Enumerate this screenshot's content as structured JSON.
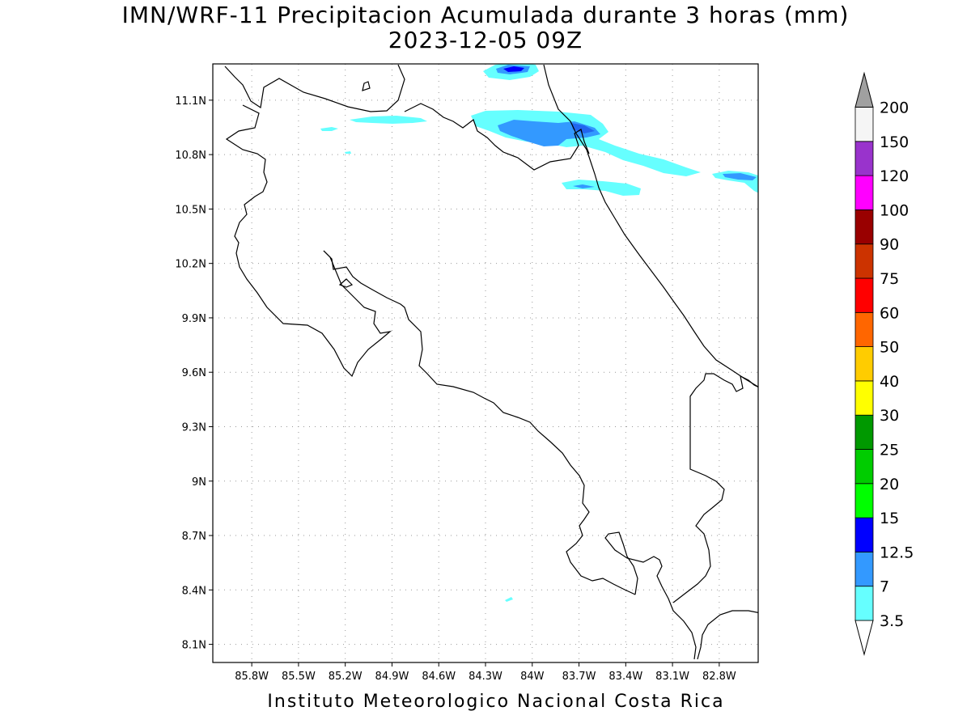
{
  "title": {
    "line1": "IMN/WRF-11 Precipitacion Acumulada durante 3 horas (mm)",
    "line2": "2023-12-05 09Z"
  },
  "footer": "Instituto Meteorologico Nacional Costa Rica",
  "map": {
    "lon_range": [
      -86.05,
      -82.55
    ],
    "lat_range": [
      8.0,
      11.3
    ],
    "lon_ticks": [
      {
        "value": -85.8,
        "label": "85.8W"
      },
      {
        "value": -85.5,
        "label": "85.5W"
      },
      {
        "value": -85.2,
        "label": "85.2W"
      },
      {
        "value": -84.9,
        "label": "84.9W"
      },
      {
        "value": -84.6,
        "label": "84.6W"
      },
      {
        "value": -84.3,
        "label": "84.3W"
      },
      {
        "value": -84.0,
        "label": "84W"
      },
      {
        "value": -83.7,
        "label": "83.7W"
      },
      {
        "value": -83.4,
        "label": "83.4W"
      },
      {
        "value": -83.1,
        "label": "83.1W"
      },
      {
        "value": -82.8,
        "label": "82.8W"
      }
    ],
    "lat_ticks": [
      {
        "value": 11.1,
        "label": "11.1N"
      },
      {
        "value": 10.8,
        "label": "10.8N"
      },
      {
        "value": 10.5,
        "label": "10.5N"
      },
      {
        "value": 10.2,
        "label": "10.2N"
      },
      {
        "value": 9.9,
        "label": "9.9N"
      },
      {
        "value": 9.6,
        "label": "9.6N"
      },
      {
        "value": 9.3,
        "label": "9.3N"
      },
      {
        "value": 9.0,
        "label": "9N"
      },
      {
        "value": 8.7,
        "label": "8.7N"
      },
      {
        "value": 8.4,
        "label": "8.4N"
      },
      {
        "value": 8.1,
        "label": "8.1N"
      }
    ],
    "grid": true
  },
  "legend": {
    "items": [
      {
        "label": "3.5",
        "color": "#66ffff"
      },
      {
        "label": "7",
        "color": "#3399ff"
      },
      {
        "label": "12.5",
        "color": "#0000ff"
      },
      {
        "label": "15",
        "color": "#00ff00"
      },
      {
        "label": "20",
        "color": "#00cc00"
      },
      {
        "label": "25",
        "color": "#009900"
      },
      {
        "label": "30",
        "color": "#ffff00"
      },
      {
        "label": "40",
        "color": "#ffcc00"
      },
      {
        "label": "50",
        "color": "#ff6600"
      },
      {
        "label": "60",
        "color": "#ff0000"
      },
      {
        "label": "75",
        "color": "#cc3300"
      },
      {
        "label": "90",
        "color": "#990000"
      },
      {
        "label": "100",
        "color": "#ff00ff"
      },
      {
        "label": "120",
        "color": "#9933cc"
      },
      {
        "label": "150",
        "color": "#f5f5f5"
      },
      {
        "label": "200",
        "color": "#a0a0a0"
      }
    ]
  }
}
